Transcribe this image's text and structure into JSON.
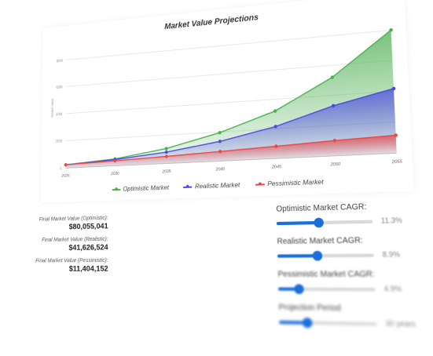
{
  "chart_data": {
    "type": "area",
    "title": "Market Value Projections",
    "ylabel": "Market Value",
    "xlabel": "",
    "x": [
      2025,
      2030,
      2035,
      2040,
      2045,
      2050,
      2055
    ],
    "ylim": [
      0,
      90
    ],
    "yticks": [
      0,
      20,
      40,
      60,
      80
    ],
    "ytick_labels": [
      "0",
      "20M",
      "40M",
      "60M",
      "80M"
    ],
    "grid": true,
    "legend_position": "bottom",
    "series": [
      {
        "name": "Optimistic Market",
        "color": "#4caf50",
        "values": [
          2.4,
          5.0,
          10.5,
          19.5,
          32.0,
          52.0,
          80.1
        ]
      },
      {
        "name": "Realistic Market",
        "color": "#4a4ae0",
        "values": [
          2.4,
          4.5,
          8.0,
          13.5,
          21.5,
          33.0,
          41.6
        ]
      },
      {
        "name": "Pessimistic Market",
        "color": "#e84848",
        "values": [
          2.4,
          3.6,
          5.0,
          6.6,
          8.2,
          10.0,
          11.4
        ]
      }
    ]
  },
  "finals": [
    {
      "label": "Final Market Value (Optimistic):",
      "value": "$80,055,041"
    },
    {
      "label": "Final Market Value (Realistic):",
      "value": "$41,626,524"
    },
    {
      "label": "Final Market Value (Pessimistic):",
      "value": "$11,404,152"
    }
  ],
  "sliders": [
    {
      "label": "Optimistic Market CAGR:",
      "value_text": "11.3%",
      "fraction": 0.45
    },
    {
      "label": "Realistic Market CAGR:",
      "value_text": "8.9%",
      "fraction": 0.42
    },
    {
      "label": "Pessimistic Market CAGR:",
      "value_text": "4.9%",
      "fraction": 0.22
    },
    {
      "label": "Projection Period",
      "value_text": "30 years",
      "fraction": 0.3
    }
  ]
}
